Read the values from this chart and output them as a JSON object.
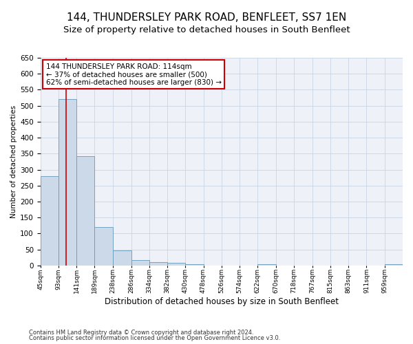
{
  "title": "144, THUNDERSLEY PARK ROAD, BENFLEET, SS7 1EN",
  "subtitle": "Size of property relative to detached houses in South Benfleet",
  "xlabel": "Distribution of detached houses by size in South Benfleet",
  "ylabel": "Number of detached properties",
  "footer_line1": "Contains HM Land Registry data © Crown copyright and database right 2024.",
  "footer_line2": "Contains public sector information licensed under the Open Government Licence v3.0.",
  "bin_edges": [
    45,
    93,
    141,
    189,
    238,
    286,
    334,
    382,
    430,
    478,
    526,
    574,
    622,
    670,
    718,
    767,
    815,
    863,
    911,
    959,
    1007
  ],
  "bar_heights": [
    280,
    520,
    342,
    120,
    48,
    16,
    10,
    8,
    5,
    0,
    0,
    0,
    5,
    0,
    0,
    0,
    0,
    0,
    0,
    5
  ],
  "bar_color": "#ccd9e8",
  "bar_edge_color": "#6699bb",
  "vline_x": 114,
  "vline_color": "#cc0000",
  "annotation_text": "144 THUNDERSLEY PARK ROAD: 114sqm\n← 37% of detached houses are smaller (500)\n62% of semi-detached houses are larger (830) →",
  "annotation_box_color": "#ffffff",
  "annotation_box_edge_color": "#cc0000",
  "ylim": [
    0,
    650
  ],
  "yticks": [
    0,
    50,
    100,
    150,
    200,
    250,
    300,
    350,
    400,
    450,
    500,
    550,
    600,
    650
  ],
  "grid_color": "#c8d4e4",
  "background_color": "#eef2f8",
  "title_fontsize": 11,
  "subtitle_fontsize": 9.5,
  "xlabel_fontsize": 8.5,
  "ylabel_fontsize": 7.5,
  "annotation_fontsize": 7.5,
  "footer_fontsize": 6.0
}
